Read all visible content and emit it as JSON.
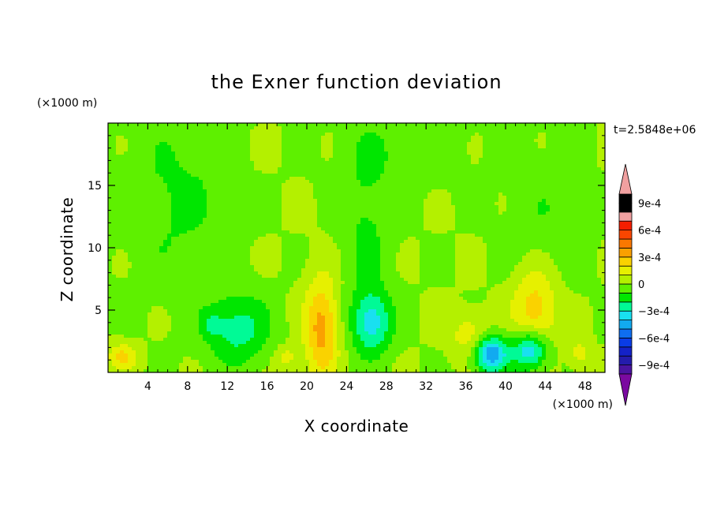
{
  "chart_data": {
    "type": "heatmap",
    "title": "the Exner function deviation",
    "xlabel": "X coordinate",
    "ylabel": "Z coordinate",
    "x_unit": "(×1000 m)",
    "y_unit": "(×1000 m)",
    "time_label": "t=2.5848e+06",
    "xlim": [
      0,
      50
    ],
    "ylim": [
      0,
      20
    ],
    "xticks": [
      4,
      8,
      12,
      16,
      20,
      24,
      28,
      32,
      36,
      40,
      44,
      48
    ],
    "yticks": [
      5,
      10,
      15
    ],
    "colorbar": {
      "levels": [
        -0.0011,
        -0.001,
        -0.0009,
        -0.0008,
        -0.0007,
        -0.0006,
        -0.0005,
        -0.0004,
        -0.0003,
        -0.0002,
        -0.0001,
        0,
        0.0001,
        0.0002,
        0.0003,
        0.0004,
        0.0005,
        0.0006,
        0.0007,
        0.0008,
        0.0009,
        0.001,
        0.0011
      ],
      "colors": [
        "#7a0aa0",
        "#4a14a0",
        "#241cac",
        "#1422c8",
        "#0a3ce6",
        "#0f6ef0",
        "#12aaf0",
        "#19e0f0",
        "#00fa96",
        "#00e600",
        "#5ef000",
        "#b4f000",
        "#e6f000",
        "#fad200",
        "#faa000",
        "#fa7800",
        "#fa4600",
        "#f51e00",
        "#f0a0a0"
      ],
      "labels": [
        {
          "value": 0.0009,
          "text": "9e-4"
        },
        {
          "value": 0.0006,
          "text": "6e-4"
        },
        {
          "value": 0.0003,
          "text": "3e-4"
        },
        {
          "value": 0,
          "text": "0"
        },
        {
          "value": -0.0003,
          "text": "−3e-4"
        },
        {
          "value": -0.0006,
          "text": "−6e-4"
        },
        {
          "value": -0.0009,
          "text": "−9e-4"
        }
      ]
    },
    "field_components": [
      {
        "cx": 26,
        "cz": 12,
        "sx": 2.6,
        "sz": 6.5,
        "amp": -0.00012
      },
      {
        "cx": 7,
        "cz": 14,
        "sx": 5.0,
        "sz": 7.0,
        "amp": -0.00012
      },
      {
        "cx": 44,
        "cz": 12,
        "sx": 4.0,
        "sz": 6.0,
        "amp": -8e-05
      },
      {
        "cx": 30,
        "cz": 18,
        "sx": 6.0,
        "sz": 3.0,
        "amp": -8e-05
      },
      {
        "cx": 13,
        "cz": 3.5,
        "sx": 3.2,
        "sz": 2.8,
        "amp": -0.00025
      },
      {
        "cx": 10.5,
        "cz": 3.8,
        "sx": 1.0,
        "sz": 0.9,
        "amp": -0.00012
      },
      {
        "cx": 26.5,
        "cz": 4.0,
        "sx": 2.0,
        "sz": 2.5,
        "amp": -0.00035
      },
      {
        "cx": 38.5,
        "cz": 1.5,
        "sx": 1.7,
        "sz": 1.5,
        "amp": -0.0005
      },
      {
        "cx": 42.5,
        "cz": 1.8,
        "sx": 1.8,
        "sz": 1.6,
        "amp": -0.00045
      },
      {
        "cx": 21.5,
        "cz": 3.5,
        "sx": 1.7,
        "sz": 4.0,
        "amp": 0.00035
      },
      {
        "cx": 43,
        "cz": 5.0,
        "sx": 2.3,
        "sz": 3.6,
        "amp": 0.00028
      },
      {
        "cx": 36.5,
        "cz": 3.0,
        "sx": 2.0,
        "sz": 1.8,
        "amp": 0.00018
      },
      {
        "cx": 1.5,
        "cz": 1.3,
        "sx": 1.5,
        "sz": 1.0,
        "amp": 0.00022
      },
      {
        "cx": 18,
        "cz": 1.2,
        "sx": 1.2,
        "sz": 0.9,
        "amp": 0.00015
      },
      {
        "cx": 47.5,
        "cz": 1.5,
        "sx": 1.0,
        "sz": 1.2,
        "amp": 0.00015
      }
    ]
  }
}
